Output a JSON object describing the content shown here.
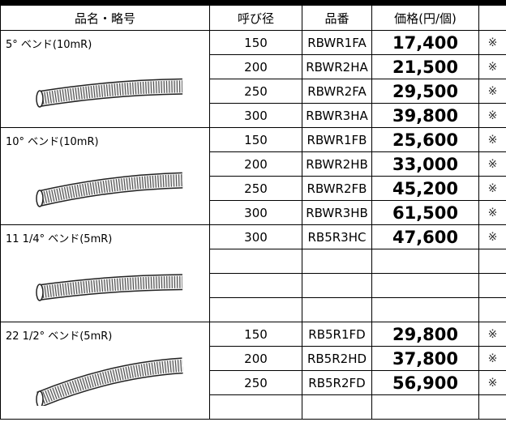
{
  "table": {
    "header": [
      "品名・略号",
      "呼び径",
      "品番",
      "価格(円/個)"
    ],
    "groups": [
      {
        "name": "5° ベンド(10mR)",
        "rows": [
          [
            "150",
            "RBWR1FA",
            "17,400",
            "※"
          ],
          [
            "200",
            "RBWR2HA",
            "21,500",
            "※"
          ],
          [
            "250",
            "RBWR2FA",
            "29,500",
            "※"
          ],
          [
            "300",
            "RBWR3HA",
            "39,800",
            "※"
          ]
        ]
      },
      {
        "name": "10° ベンド(10mR)",
        "rows": [
          [
            "150",
            "RBWR1FB",
            "25,600",
            "※"
          ],
          [
            "200",
            "RBWR2HB",
            "33,000",
            "※"
          ],
          [
            "250",
            "RBWR2FB",
            "45,200",
            "※"
          ],
          [
            "300",
            "RBWR3HB",
            "61,500",
            "※"
          ]
        ]
      },
      {
        "name": "11 1/4° ベンド(5mR)",
        "rows": [
          [
            "300",
            "RB5R3HC",
            "47,600",
            "※"
          ]
        ]
      },
      {
        "name": "22 1/2° ベンド(5mR)",
        "rows": [
          [
            "150",
            "RB5R1FD",
            "29,800",
            "※"
          ],
          [
            "200",
            "RB5R2HD",
            "37,800",
            "※"
          ],
          [
            "250",
            "RB5R2FD",
            "56,900",
            "※"
          ]
        ]
      }
    ]
  }
}
